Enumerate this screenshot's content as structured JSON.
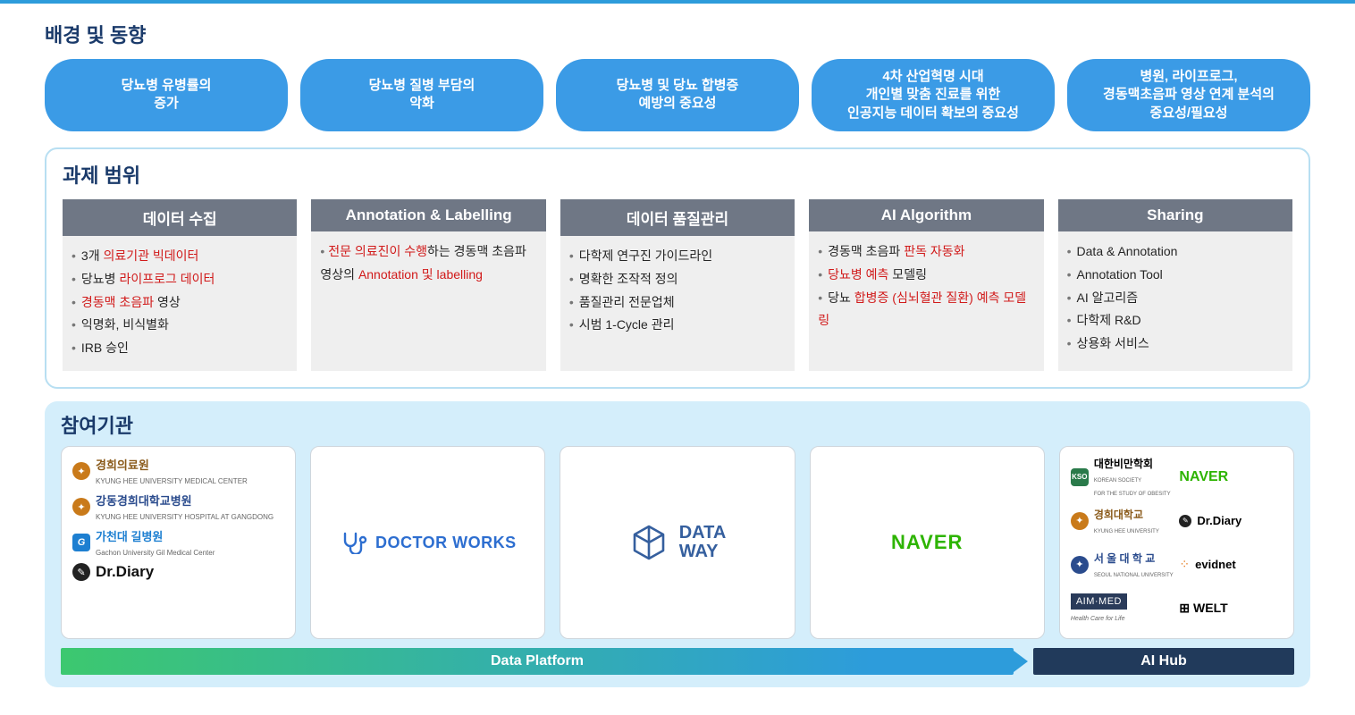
{
  "colors": {
    "pill_bg": "#3b9be6",
    "card_bg": "#efefef",
    "card_head_bg": "#6f7785",
    "body_text": "#262626",
    "highlight": "#d11a1a",
    "title_color": "#1a3a6a",
    "partner_bg": "#d4eefb",
    "scope_border": "#b8dff2",
    "footer_grad_start": "#3cc86f",
    "footer_grad_end": "#2d9cdb",
    "footer_right_bg": "#213a5b",
    "naver_green": "#2db400",
    "doctorworks_blue": "#2d6ed0",
    "dataway_blue": "#355f9e"
  },
  "section1": {
    "title": "배경 및 동향",
    "pills": [
      "당뇨병 유병률의\n증가",
      "당뇨병 질병 부담의\n악화",
      "당뇨병 및 당뇨 합병증\n예방의 중요성",
      "4차 산업혁명 시대\n개인별 맞춤 진료를 위한\n인공지능 데이터 확보의 중요성",
      "병원, 라이프로그,\n경동맥초음파 영상 연계 분석의\n중요성/필요성"
    ]
  },
  "section2": {
    "title": "과제 범위",
    "columns": [
      {
        "title": "데이터 수집",
        "items": [
          [
            {
              "t": "3개 "
            },
            {
              "t": "의료기관 빅데이터",
              "hl": true
            }
          ],
          [
            {
              "t": "당뇨병 "
            },
            {
              "t": "라이프로그 데이터",
              "hl": true
            }
          ],
          [
            {
              "t": "경동맥 초음파",
              "hl": true
            },
            {
              "t": " 영상"
            }
          ],
          [
            {
              "t": "익명화, 비식별화"
            }
          ],
          [
            {
              "t": "IRB 승인"
            }
          ]
        ]
      },
      {
        "title": "Annotation & Labelling",
        "items": [
          [
            {
              "t": "전문 의료진이 수행",
              "hl": true
            },
            {
              "t": "하는 경동맥 초음파 영상의 "
            },
            {
              "t": "Annotation 및 labelling",
              "hl": true
            }
          ]
        ],
        "free": true
      },
      {
        "title": "데이터 품질관리",
        "items": [
          [
            {
              "t": "다학제 연구진 가이드라인"
            }
          ],
          [
            {
              "t": "명확한 조작적 정의"
            }
          ],
          [
            {
              "t": "품질관리 전문업체"
            }
          ],
          [
            {
              "t": "시범 1-Cycle 관리"
            }
          ]
        ]
      },
      {
        "title": "AI Algorithm",
        "items": [
          [
            {
              "t": "경동맥 초음파 "
            },
            {
              "t": "판독 자동화",
              "hl": true
            }
          ],
          [
            {
              "t": "당뇨병 예측",
              "hl": true
            },
            {
              "t": " 모델링"
            }
          ],
          [
            {
              "t": "당뇨 "
            },
            {
              "t": "합병증 (심뇌혈관 질환) 예측 모델링",
              "hl": true
            }
          ]
        ]
      },
      {
        "title": "Sharing",
        "items": [
          [
            {
              "t": "Data & Annotation"
            }
          ],
          [
            {
              "t": "Annotation Tool"
            }
          ],
          [
            {
              "t": "AI 알고리즘"
            }
          ],
          [
            {
              "t": "다학제 R&D"
            }
          ],
          [
            {
              "t": "상용화 서비스"
            }
          ]
        ]
      }
    ]
  },
  "section3": {
    "title": "참여기관",
    "cards": {
      "c0": {
        "kyunghee_main": "경희의료원",
        "kyunghee_sub": "KYUNG HEE UNIVERSITY MEDICAL CENTER",
        "gangdong_main": "강동경희대학교병원",
        "gangdong_sub": "KYUNG HEE UNIVERSITY HOSPITAL AT GANGDONG",
        "gachon_main": "가천대 길병원",
        "gachon_sub": "Gachon University Gil Medical Center",
        "gachon_mark": "G",
        "drdiary": "Dr.Diary"
      },
      "c1": {
        "doctorworks": "DOCTOR WORKS"
      },
      "c2": {
        "dataway_l1": "DATA",
        "dataway_l2": "WAY"
      },
      "c3": {
        "naver": "NAVER"
      },
      "c4": {
        "obesity_mark": "KSO",
        "obesity_main": "대한비만학회",
        "obesity_sub": "KOREAN SOCIETY\nFOR THE STUDY OF OBESITY",
        "naver": "NAVER",
        "kyunghee_main": "경희대학교",
        "kyunghee_sub": "KYUNG HEE UNIVERSITY",
        "drdiary": "Dr.Diary",
        "snu_main": "서 울 대 학 교",
        "snu_sub": "SEOUL NATIONAL UNIVERSITY",
        "evidnet": "evidnet",
        "aimmed_main": "AIM·MED",
        "aimmed_sub": "Health Care for Life",
        "welt": "⊞ WELT"
      }
    },
    "footer_left": "Data Platform",
    "footer_right": "AI Hub"
  }
}
